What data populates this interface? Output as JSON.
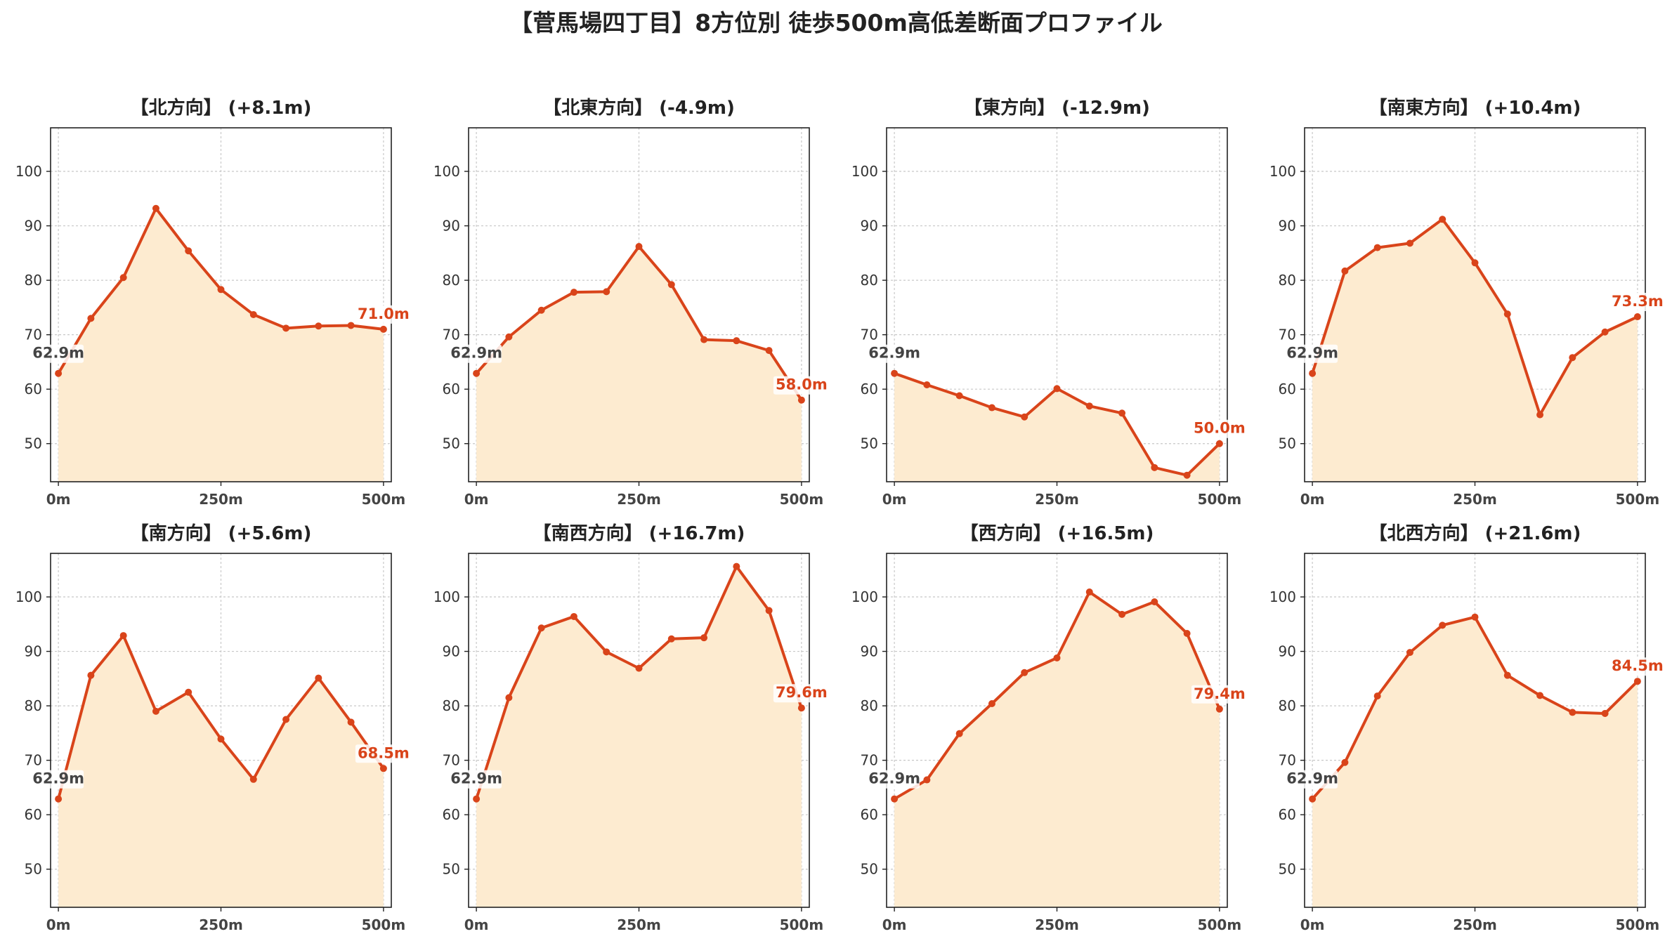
{
  "title": "【菅馬場四丁目】8方位別 徒歩500m高低差断面プロファイル",
  "colors": {
    "line": "#d9441a",
    "fill": "#fdebd0",
    "grid": "#c8c8c8",
    "axis": "#222222",
    "start_label": "#444444",
    "end_label": "#d9441a"
  },
  "chart_data": [
    {
      "type": "area",
      "title": "【北方向】 (+8.1m)",
      "x": [
        0,
        50,
        100,
        150,
        200,
        250,
        300,
        350,
        400,
        450,
        500
      ],
      "y": [
        62.9,
        73.0,
        80.5,
        93.2,
        85.4,
        78.3,
        73.7,
        71.2,
        71.6,
        71.7,
        71.0
      ],
      "xticks": [
        "0m",
        "250m",
        "500m"
      ],
      "xtick_values": [
        0,
        250,
        500
      ],
      "yticks": [
        50,
        60,
        70,
        80,
        90,
        100
      ],
      "ylim": [
        43,
        108
      ],
      "xlim": [
        -12,
        512
      ],
      "start_label": "62.9m",
      "end_label": "71.0m",
      "grid": true
    },
    {
      "type": "area",
      "title": "【北東方向】 (-4.9m)",
      "x": [
        0,
        50,
        100,
        150,
        200,
        250,
        300,
        350,
        400,
        450,
        500
      ],
      "y": [
        62.9,
        69.6,
        74.5,
        77.8,
        77.9,
        86.2,
        79.2,
        69.1,
        68.9,
        67.1,
        58.0
      ],
      "xticks": [
        "0m",
        "250m",
        "500m"
      ],
      "xtick_values": [
        0,
        250,
        500
      ],
      "yticks": [
        50,
        60,
        70,
        80,
        90,
        100
      ],
      "ylim": [
        43,
        108
      ],
      "xlim": [
        -12,
        512
      ],
      "start_label": "62.9m",
      "end_label": "58.0m",
      "grid": true
    },
    {
      "type": "area",
      "title": "【東方向】 (-12.9m)",
      "x": [
        0,
        50,
        100,
        150,
        200,
        250,
        300,
        350,
        400,
        450,
        500
      ],
      "y": [
        62.9,
        60.8,
        58.8,
        56.6,
        54.9,
        60.1,
        56.9,
        55.6,
        45.6,
        44.2,
        50.0
      ],
      "xticks": [
        "0m",
        "250m",
        "500m"
      ],
      "xtick_values": [
        0,
        250,
        500
      ],
      "yticks": [
        50,
        60,
        70,
        80,
        90,
        100
      ],
      "ylim": [
        43,
        108
      ],
      "xlim": [
        -12,
        512
      ],
      "start_label": "62.9m",
      "end_label": "50.0m",
      "grid": true
    },
    {
      "type": "area",
      "title": "【南東方向】 (+10.4m)",
      "x": [
        0,
        50,
        100,
        150,
        200,
        250,
        300,
        350,
        400,
        450,
        500
      ],
      "y": [
        62.9,
        81.7,
        86.0,
        86.8,
        91.2,
        83.2,
        73.8,
        55.3,
        65.8,
        70.5,
        73.3
      ],
      "xticks": [
        "0m",
        "250m",
        "500m"
      ],
      "xtick_values": [
        0,
        250,
        500
      ],
      "yticks": [
        50,
        60,
        70,
        80,
        90,
        100
      ],
      "ylim": [
        43,
        108
      ],
      "xlim": [
        -12,
        512
      ],
      "start_label": "62.9m",
      "end_label": "73.3m",
      "grid": true
    },
    {
      "type": "area",
      "title": "【南方向】 (+5.6m)",
      "x": [
        0,
        50,
        100,
        150,
        200,
        250,
        300,
        350,
        400,
        450,
        500
      ],
      "y": [
        62.9,
        85.6,
        92.9,
        79.0,
        82.5,
        73.9,
        66.5,
        77.5,
        85.1,
        77.0,
        68.5
      ],
      "xticks": [
        "0m",
        "250m",
        "500m"
      ],
      "xtick_values": [
        0,
        250,
        500
      ],
      "yticks": [
        50,
        60,
        70,
        80,
        90,
        100
      ],
      "ylim": [
        43,
        108
      ],
      "xlim": [
        -12,
        512
      ],
      "start_label": "62.9m",
      "end_label": "68.5m",
      "grid": true
    },
    {
      "type": "area",
      "title": "【南西方向】 (+16.7m)",
      "x": [
        0,
        50,
        100,
        150,
        200,
        250,
        300,
        350,
        400,
        450,
        500
      ],
      "y": [
        62.9,
        81.5,
        94.3,
        96.4,
        89.9,
        86.9,
        92.3,
        92.5,
        105.6,
        97.5,
        79.6
      ],
      "xticks": [
        "0m",
        "250m",
        "500m"
      ],
      "xtick_values": [
        0,
        250,
        500
      ],
      "yticks": [
        50,
        60,
        70,
        80,
        90,
        100
      ],
      "ylim": [
        43,
        108
      ],
      "xlim": [
        -12,
        512
      ],
      "start_label": "62.9m",
      "end_label": "79.6m",
      "grid": true
    },
    {
      "type": "area",
      "title": "【西方向】 (+16.5m)",
      "x": [
        0,
        50,
        100,
        150,
        200,
        250,
        300,
        350,
        400,
        450,
        500
      ],
      "y": [
        62.9,
        66.4,
        74.9,
        80.4,
        86.1,
        88.8,
        100.9,
        96.8,
        99.1,
        93.3,
        79.4
      ],
      "xticks": [
        "0m",
        "250m",
        "500m"
      ],
      "xtick_values": [
        0,
        250,
        500
      ],
      "yticks": [
        50,
        60,
        70,
        80,
        90,
        100
      ],
      "ylim": [
        43,
        108
      ],
      "xlim": [
        -12,
        512
      ],
      "start_label": "62.9m",
      "end_label": "79.4m",
      "grid": true
    },
    {
      "type": "area",
      "title": "【北西方向】 (+21.6m)",
      "x": [
        0,
        50,
        100,
        150,
        200,
        250,
        300,
        350,
        400,
        450,
        500
      ],
      "y": [
        62.9,
        69.6,
        81.8,
        89.8,
        94.8,
        96.3,
        85.6,
        81.9,
        78.8,
        78.6,
        84.5
      ],
      "xticks": [
        "0m",
        "250m",
        "500m"
      ],
      "xtick_values": [
        0,
        250,
        500
      ],
      "yticks": [
        50,
        60,
        70,
        80,
        90,
        100
      ],
      "ylim": [
        43,
        108
      ],
      "xlim": [
        -12,
        512
      ],
      "start_label": "62.9m",
      "end_label": "84.5m",
      "grid": true
    }
  ]
}
